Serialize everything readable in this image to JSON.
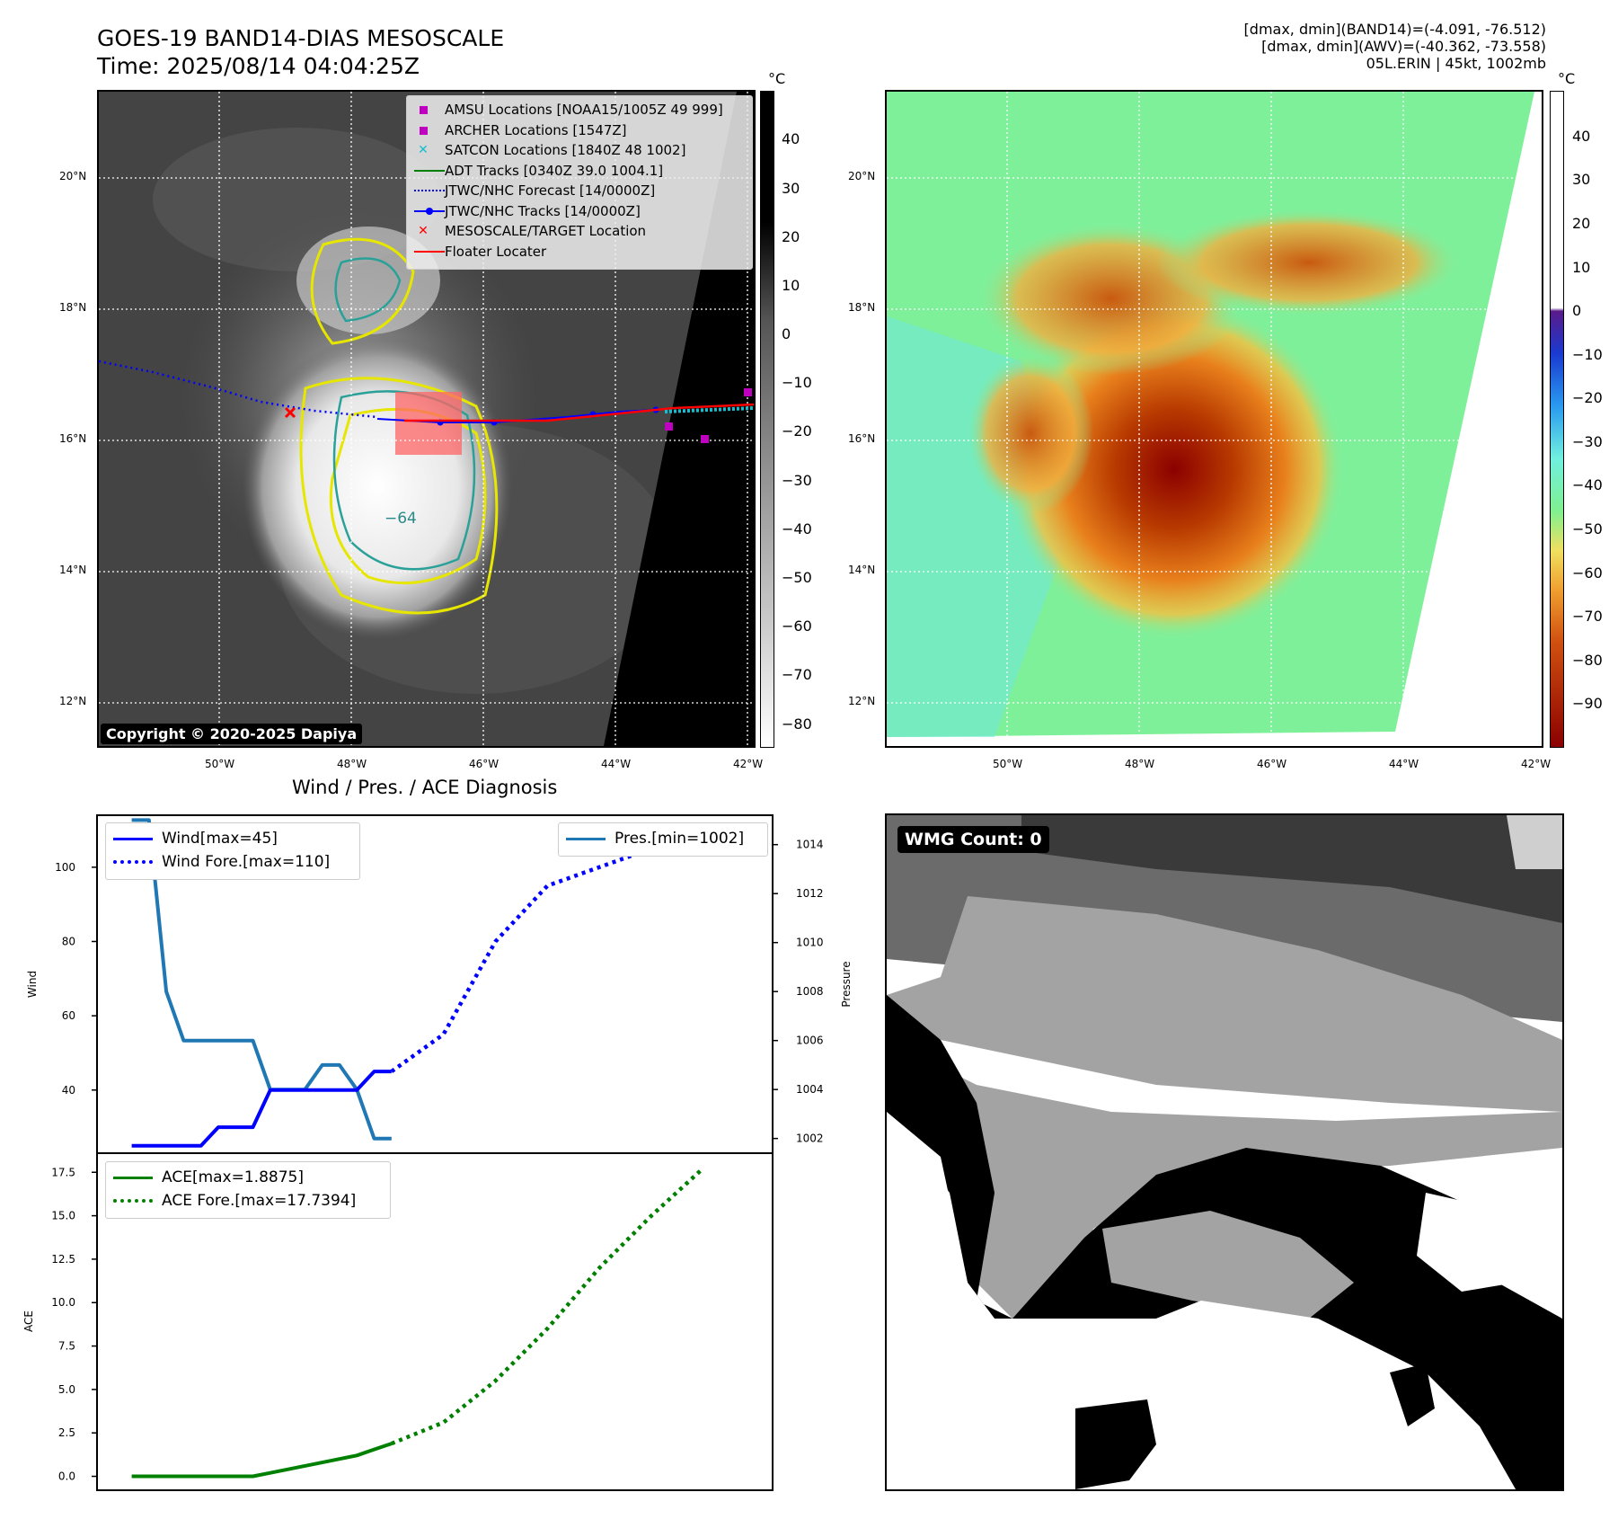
{
  "header": {
    "title_line1": "GOES-19 BAND14-DIAS MESOSCALE",
    "title_line2": "Time: 2025/08/14 04:04:25Z",
    "info_line1": "[dmax, dmin](BAND14)=(-4.091, -76.512)",
    "info_line2": "[dmax, dmin](AWV)=(-40.362, -73.558)",
    "info_line3": "05L.ERIN | 45kt, 1002mb"
  },
  "map_common": {
    "lat_labels": [
      "20°N",
      "18°N",
      "16°N",
      "14°N",
      "12°N"
    ],
    "lon_labels": [
      "50°W",
      "48°W",
      "46°W",
      "44°W",
      "42°W"
    ]
  },
  "left_map": {
    "copyright": "Copyright © 2020-2025 Dapiya",
    "contour_label": "−64",
    "legend": [
      {
        "label": "AMSU Locations [NOAA15/1005Z 49 999]",
        "marker": "square",
        "color": "#c000c0"
      },
      {
        "label": "ARCHER Locations [1547Z]",
        "marker": "square",
        "color": "#c000c0"
      },
      {
        "label": "SATCON Locations [1840Z 48 1002]",
        "marker": "x",
        "color": "#17becf"
      },
      {
        "label": "ADT Tracks [0340Z 39.0 1004.1]",
        "marker": "line",
        "color": "#008000"
      },
      {
        "label": "JTWC/NHC Forecast [14/0000Z]",
        "marker": "dotted",
        "color": "#0000ff"
      },
      {
        "label": "JTWC/NHC Tracks [14/0000Z]",
        "marker": "line-dot",
        "color": "#0000ff"
      },
      {
        "label": "MESOSCALE/TARGET Location",
        "marker": "x",
        "color": "#ff0000"
      },
      {
        "label": "Floater Locater",
        "marker": "line",
        "color": "#ff0000"
      }
    ],
    "colorbar": {
      "unit": "°C",
      "ticks": [
        "40",
        "30",
        "20",
        "10",
        "0",
        "−10",
        "−20",
        "−30",
        "−40",
        "−50",
        "−60",
        "−70",
        "−80"
      ]
    }
  },
  "right_map": {
    "colorbar": {
      "unit": "°C",
      "ticks": [
        "40",
        "30",
        "20",
        "10",
        "0",
        "−10",
        "−20",
        "−30",
        "−40",
        "−50",
        "−60",
        "−70",
        "−80",
        "−90"
      ]
    }
  },
  "diag": {
    "title": "Wind / Pres. / ACE Diagnosis",
    "wind_ylabel": "Wind",
    "pres_ylabel": "Pressure",
    "ace_ylabel": "ACE",
    "legend_wind": "Wind[max=45]",
    "legend_wind_fore": "Wind Fore.[max=110]",
    "legend_pres": "Pres.[min=1002]",
    "legend_ace": "ACE[max=1.8875]",
    "legend_ace_fore": "ACE Fore.[max=17.7394]"
  },
  "wmg": {
    "label": "WMG Count: 0"
  },
  "chart_data": [
    {
      "type": "line",
      "title": "Wind / Pres. / ACE Diagnosis",
      "ylabel": "Wind",
      "ylim": [
        23,
        114
      ],
      "yticks": [
        40,
        60,
        80,
        100
      ],
      "series": [
        {
          "name": "Wind[max=45]",
          "color": "#0000ff",
          "style": "solid",
          "points": [
            [
              0,
              25
            ],
            [
              1,
              25
            ],
            [
              2,
              25
            ],
            [
              3,
              25
            ],
            [
              4,
              25
            ],
            [
              5,
              30
            ],
            [
              6,
              30
            ],
            [
              7,
              30
            ],
            [
              8,
              40
            ],
            [
              9,
              40
            ],
            [
              10,
              40
            ],
            [
              11,
              40
            ],
            [
              12,
              40
            ],
            [
              13,
              40
            ],
            [
              14,
              45
            ],
            [
              15,
              45
            ]
          ]
        },
        {
          "name": "Wind Fore.[max=110]",
          "color": "#0000ff",
          "style": "dotted",
          "points": [
            [
              15,
              45
            ],
            [
              18,
              55
            ],
            [
              21,
              80
            ],
            [
              24,
              95
            ],
            [
              27,
              100
            ],
            [
              30,
              105
            ],
            [
              33,
              110
            ]
          ]
        }
      ]
    },
    {
      "type": "line",
      "ylabel": "Pressure",
      "ylim": [
        1001.4,
        1015.2
      ],
      "yticks": [
        1002,
        1004,
        1006,
        1008,
        1010,
        1012,
        1014
      ],
      "series": [
        {
          "name": "Pres.[min=1002]",
          "color": "#1f77b4",
          "style": "solid",
          "points": [
            [
              0,
              1015
            ],
            [
              1,
              1015
            ],
            [
              2,
              1008
            ],
            [
              3,
              1006
            ],
            [
              4,
              1006
            ],
            [
              5,
              1006
            ],
            [
              6,
              1006
            ],
            [
              7,
              1006
            ],
            [
              8,
              1004
            ],
            [
              9,
              1004
            ],
            [
              10,
              1004
            ],
            [
              11,
              1005
            ],
            [
              12,
              1005
            ],
            [
              13,
              1004
            ],
            [
              14,
              1002
            ],
            [
              15,
              1002
            ]
          ]
        }
      ]
    },
    {
      "type": "line",
      "ylabel": "ACE",
      "ylim": [
        -0.8,
        18.6
      ],
      "yticks": [
        0.0,
        2.5,
        5.0,
        7.5,
        10.0,
        12.5,
        15.0,
        17.5
      ],
      "series": [
        {
          "name": "ACE[max=1.8875]",
          "color": "#008000",
          "style": "solid",
          "points": [
            [
              0,
              0
            ],
            [
              1,
              0
            ],
            [
              2,
              0
            ],
            [
              3,
              0
            ],
            [
              4,
              0
            ],
            [
              5,
              0
            ],
            [
              6,
              0
            ],
            [
              7,
              0
            ],
            [
              8,
              0.2
            ],
            [
              9,
              0.4
            ],
            [
              10,
              0.6
            ],
            [
              11,
              0.8
            ],
            [
              12,
              1.0
            ],
            [
              13,
              1.2
            ],
            [
              14,
              1.55
            ],
            [
              15,
              1.8875
            ]
          ]
        },
        {
          "name": "ACE Fore.[max=17.7394]",
          "color": "#008000",
          "style": "dotted",
          "points": [
            [
              15,
              1.8875
            ],
            [
              18,
              3.1
            ],
            [
              21,
              5.5
            ],
            [
              24,
              8.5
            ],
            [
              27,
              12.0
            ],
            [
              30,
              15.0
            ],
            [
              33,
              17.7394
            ]
          ]
        }
      ]
    }
  ]
}
